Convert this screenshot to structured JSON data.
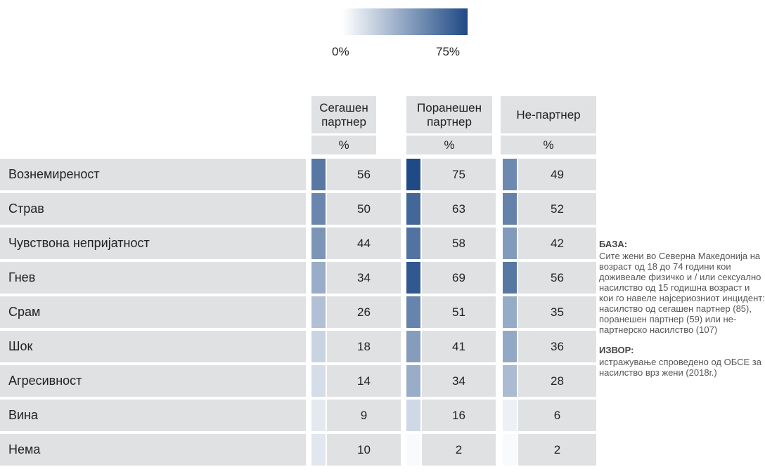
{
  "legend": {
    "ticks": [
      {
        "value": 0,
        "label": "0%"
      },
      {
        "value": 75,
        "label": "75%"
      }
    ],
    "color_low": "#ffffff",
    "color_high": "#1f4a85"
  },
  "table": {
    "columns": [
      "Сегашен партнер",
      "Поранешен партнер",
      "Не-партнер"
    ],
    "unit": "%",
    "rows": [
      {
        "label": "Вознемиреност",
        "values": [
          56,
          75,
          49
        ]
      },
      {
        "label": "Страв",
        "values": [
          50,
          63,
          52
        ]
      },
      {
        "label": "Чувствона непријатност",
        "values": [
          44,
          58,
          42
        ]
      },
      {
        "label": "Гнев",
        "values": [
          34,
          69,
          56
        ]
      },
      {
        "label": "Срам",
        "values": [
          26,
          51,
          35
        ]
      },
      {
        "label": "Шок",
        "values": [
          18,
          41,
          36
        ]
      },
      {
        "label": "Агресивност",
        "values": [
          14,
          34,
          28
        ]
      },
      {
        "label": "Вина",
        "values": [
          9,
          16,
          6
        ]
      },
      {
        "label": "Нема",
        "values": [
          10,
          2,
          2
        ]
      }
    ]
  },
  "notes": {
    "base_title": "БАЗА:",
    "base_text": "Сите жени во Северна Македонија на возраст од 18 до 74 години кои доживеале физичко и / или сексуално насилство од 15 годишна возраст и кои го навеле најсериозниот инцидент: насилство од сегашен партнер (85), поранешен партнер (59) или не-партнерско насилство (107)",
    "source_title": "ИЗВОР:",
    "source_text": "истражување спроведено од ОБСЕ за насилство врз жени (2018г.)"
  }
}
